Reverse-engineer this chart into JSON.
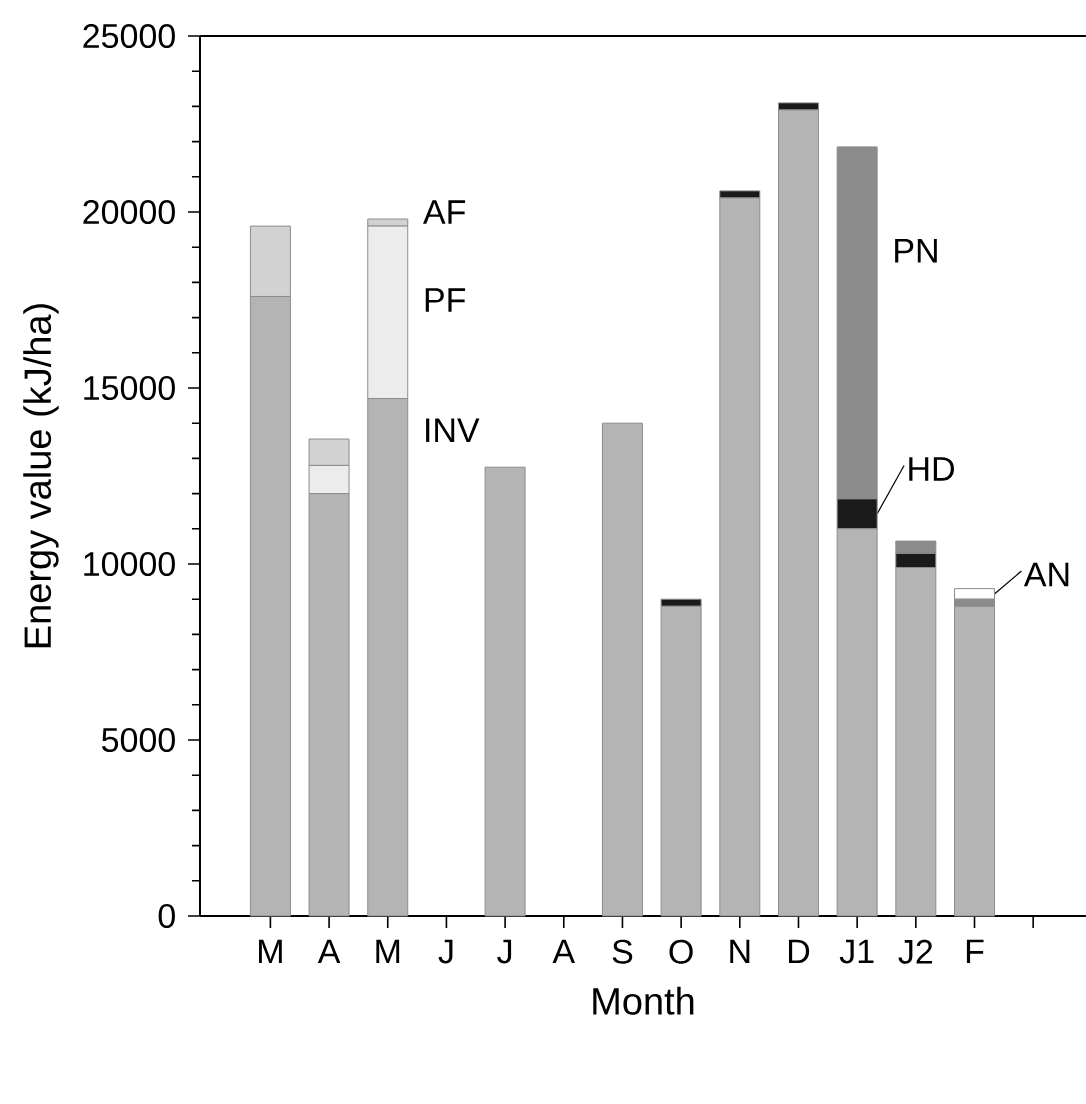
{
  "chart_data": {
    "type": "bar",
    "stacked": true,
    "xlabel": "Month",
    "ylabel": "Energy value (kJ/ha)",
    "categories": [
      "M",
      "A",
      "M",
      "J",
      "J",
      "A",
      "S",
      "O",
      "N",
      "D",
      "J1",
      "J2",
      "F"
    ],
    "ylim": [
      0,
      25000
    ],
    "yticks": [
      0,
      5000,
      10000,
      15000,
      20000,
      25000
    ],
    "series": [
      {
        "name": "INV",
        "color": "#b4b4b4",
        "values": [
          17600,
          12000,
          14700,
          null,
          12750,
          null,
          14000,
          8800,
          20400,
          22900,
          11000,
          9900,
          8800
        ]
      },
      {
        "name": "HD",
        "color": "#1a1a1a",
        "values": [
          null,
          null,
          null,
          null,
          null,
          null,
          null,
          200,
          200,
          200,
          850,
          400,
          null
        ]
      },
      {
        "name": "PN",
        "color": "#8c8c8c",
        "values": [
          null,
          null,
          null,
          null,
          null,
          null,
          null,
          null,
          null,
          null,
          10000,
          350,
          200
        ]
      },
      {
        "name": "AN",
        "color": "#ffffff",
        "values": [
          null,
          null,
          null,
          null,
          null,
          null,
          null,
          null,
          null,
          null,
          null,
          null,
          300
        ]
      },
      {
        "name": "PF",
        "color": "#ececec",
        "values": [
          null,
          800,
          4900,
          null,
          null,
          null,
          null,
          null,
          null,
          null,
          null,
          null,
          null
        ]
      },
      {
        "name": "AF",
        "color": "#d2d2d2",
        "values": [
          2000,
          750,
          200,
          null,
          null,
          null,
          null,
          null,
          null,
          null,
          null,
          null,
          null
        ]
      }
    ]
  }
}
